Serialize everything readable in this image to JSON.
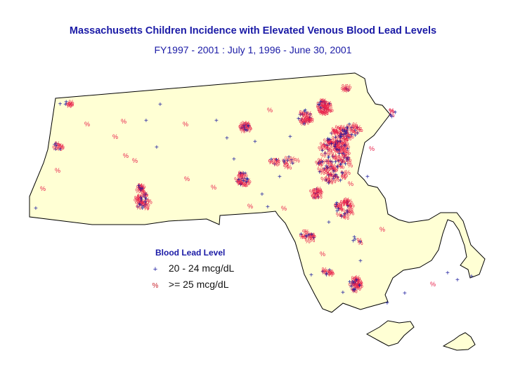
{
  "title": "Massachusetts Children Incidence with Elevated Venous Blood Lead Levels",
  "subtitle": "FY1997 - 2001 : July 1, 1996 - June 30, 2001",
  "legend": {
    "title": "Blood Lead Level",
    "items": [
      {
        "symbol": "+",
        "label": "20 - 24 mcg/dL",
        "color": "#1a1a9e",
        "icon": "plus-marker-icon"
      },
      {
        "symbol": "%",
        "label": ">=  25 mcg/dL",
        "color": "#c8202a",
        "icon": "percent-marker-icon"
      }
    ]
  },
  "colors": {
    "land": "#ffffd4",
    "outline": "#000000",
    "blue_marker": "#1a1a9e",
    "red_marker": "#e8204a"
  }
}
